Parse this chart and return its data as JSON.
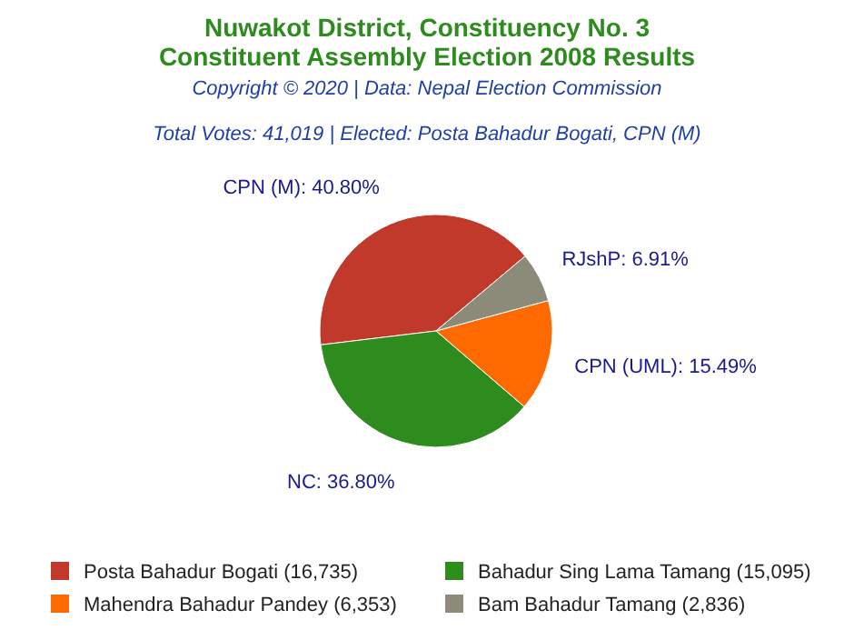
{
  "chart_data": {
    "type": "pie",
    "title": "Nuwakot District, Constituency No. 3",
    "subtitle": "Constituent Assembly Election 2008 Results",
    "annotations": [
      "Copyright © 2020 | Data: Nepal Election Commission",
      "Total Votes: 41,019 | Elected: Posta Bahadur Bogati, CPN (M)"
    ],
    "categories": [
      "Posta Bahadur Bogati (16,735)",
      "Bahadur Sing Lama Tamang (15,095)",
      "Mahendra Bahadur Pandey (6,353)",
      "Bam Bahadur Tamang (2,836)"
    ],
    "values": [
      40.8,
      36.8,
      15.49,
      6.91
    ],
    "value_labels": [
      "CPN (M): 40.80%",
      "NC: 36.80%",
      "CPN (UML): 15.49%",
      "RJshP: 6.91%"
    ],
    "colors": [
      "#c0392b",
      "#2e8b1e",
      "#ff6a00",
      "#8c8a78"
    ],
    "legend": "bottom"
  }
}
